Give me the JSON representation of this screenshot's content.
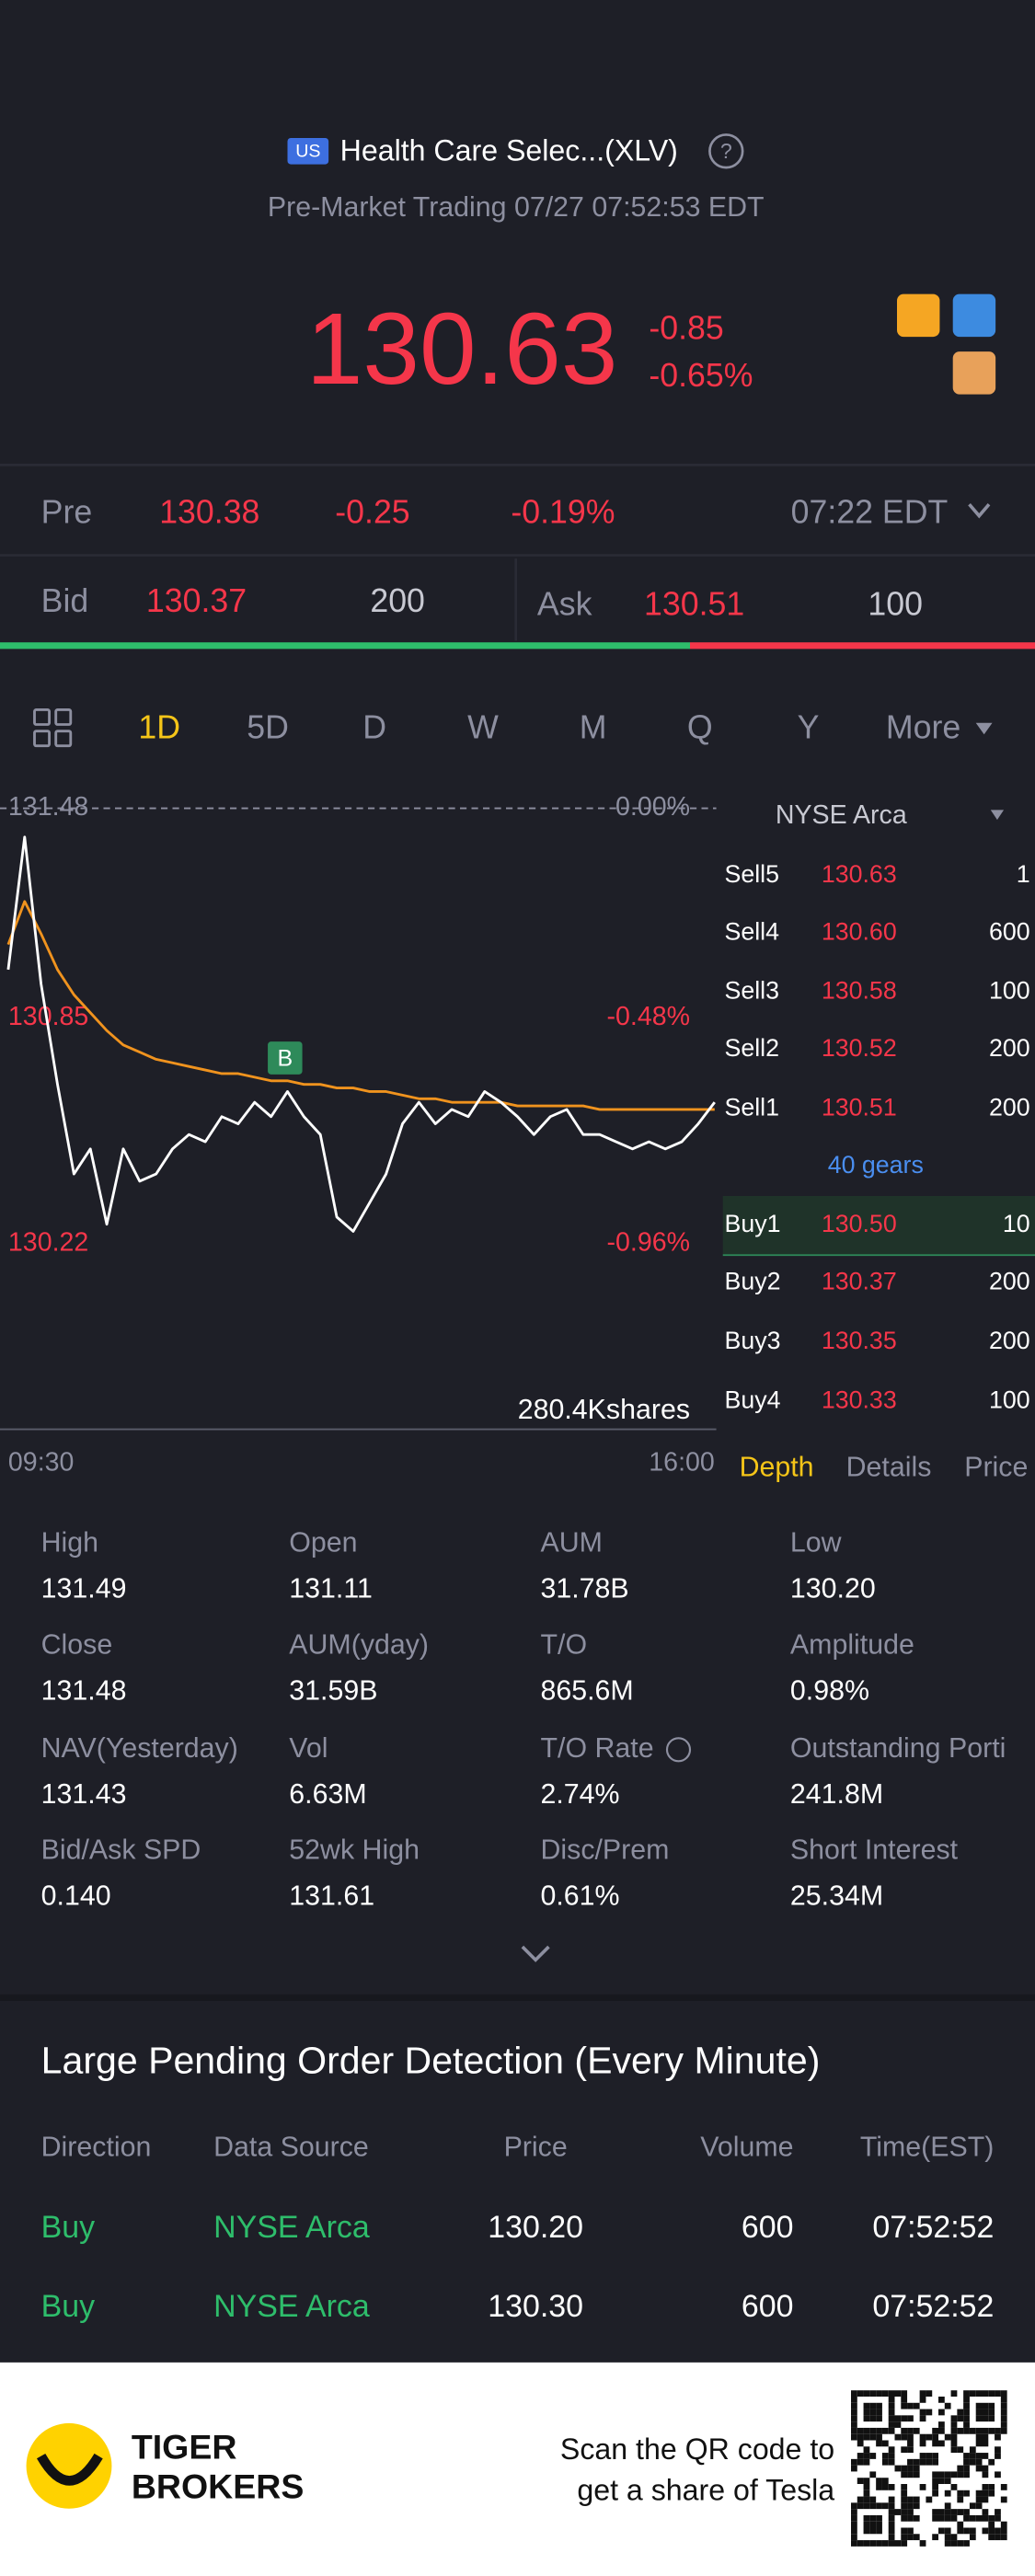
{
  "header": {
    "badge": "US",
    "title": "Health Care Selec...(XLV)",
    "subtitle": "Pre-Market Trading 07/27 07:52:53 EDT",
    "price": "130.63",
    "change": "-0.85",
    "change_pct": "-0.65%"
  },
  "pre": {
    "label": "Pre",
    "price": "130.38",
    "change": "-0.25",
    "change_pct": "-0.19%",
    "time": "07:22 EDT"
  },
  "quote": {
    "bid_label": "Bid",
    "bid": "130.37",
    "bid_size": "200",
    "ask_label": "Ask",
    "ask": "130.51",
    "ask_size": "100"
  },
  "periods": [
    "1D",
    "5D",
    "D",
    "W",
    "M",
    "Q",
    "Y",
    "More"
  ],
  "chart_data": {
    "type": "line",
    "ylim": [
      130.22,
      131.48
    ],
    "yticks": [
      131.48,
      130.85,
      130.22
    ],
    "pct_labels": [
      "0.00%",
      "-0.48%",
      "-0.96%"
    ],
    "x_labels": [
      "09:30",
      "16:00"
    ],
    "volume_label": "280.4Kshares",
    "marker": "B",
    "series": [
      {
        "color": "#ffffff",
        "values": [
          131.03,
          131.4,
          130.99,
          130.71,
          130.46,
          130.53,
          130.32,
          130.53,
          130.44,
          130.46,
          130.53,
          130.57,
          130.55,
          130.62,
          130.6,
          130.66,
          130.62,
          130.69,
          130.62,
          130.57,
          130.34,
          130.3,
          130.38,
          130.46,
          130.6,
          130.66,
          130.6,
          130.64,
          130.62,
          130.69,
          130.66,
          130.62,
          130.57,
          130.62,
          130.64,
          130.57,
          130.57,
          130.55,
          130.53,
          130.55,
          130.53,
          130.55,
          130.6,
          130.66
        ]
      },
      {
        "color": "#f0931e",
        "values": [
          131.1,
          131.22,
          131.13,
          131.03,
          130.96,
          130.91,
          130.86,
          130.82,
          130.8,
          130.78,
          130.77,
          130.76,
          130.75,
          130.74,
          130.74,
          130.73,
          130.72,
          130.72,
          130.71,
          130.71,
          130.7,
          130.7,
          130.69,
          130.69,
          130.68,
          130.67,
          130.67,
          130.66,
          130.66,
          130.66,
          130.66,
          130.65,
          130.65,
          130.65,
          130.65,
          130.65,
          130.64,
          130.64,
          130.64,
          130.64,
          130.64,
          130.64,
          130.64,
          130.64
        ]
      }
    ]
  },
  "order_book": {
    "exchange": "NYSE Arca",
    "asks": [
      [
        "Sell5",
        "130.63",
        "1"
      ],
      [
        "Sell4",
        "130.60",
        "600"
      ],
      [
        "Sell3",
        "130.58",
        "100"
      ],
      [
        "Sell2",
        "130.52",
        "200"
      ],
      [
        "Sell1",
        "130.51",
        "200"
      ]
    ],
    "gears": "40 gears",
    "bids": [
      [
        "Buy1",
        "130.50",
        "10"
      ],
      [
        "Buy2",
        "130.37",
        "200"
      ],
      [
        "Buy3",
        "130.35",
        "200"
      ],
      [
        "Buy4",
        "130.33",
        "100"
      ]
    ],
    "tabs": [
      "Depth",
      "Details",
      "Price"
    ]
  },
  "stats": [
    [
      [
        "High",
        "131.49"
      ],
      [
        "Open",
        "131.11"
      ],
      [
        "AUM",
        "31.78B"
      ],
      [
        "Low",
        "130.20"
      ]
    ],
    [
      [
        "Close",
        "131.48"
      ],
      [
        "AUM(yday)",
        "31.59B"
      ],
      [
        "T/O",
        "865.6M"
      ],
      [
        "Amplitude",
        "0.98%"
      ]
    ],
    [
      [
        "NAV(Yesterday)",
        "131.43"
      ],
      [
        "Vol",
        "6.63M"
      ],
      [
        "T/O Rate",
        "2.74%"
      ],
      [
        "Outstanding Porti",
        "241.8M"
      ]
    ],
    [
      [
        "Bid/Ask SPD",
        "0.140"
      ],
      [
        "52wk High",
        "131.61"
      ],
      [
        "Disc/Prem",
        "0.61%"
      ],
      [
        "Short Interest",
        "25.34M"
      ]
    ]
  ],
  "orders": {
    "title": "Large Pending Order Detection (Every Minute)",
    "headers": [
      "Direction",
      "Data Source",
      "Price",
      "Volume",
      "Time(EST)"
    ],
    "rows": [
      [
        "Buy",
        "NYSE Arca",
        "130.20",
        "600",
        "07:52:52"
      ],
      [
        "Buy",
        "NYSE Arca",
        "130.30",
        "600",
        "07:52:52"
      ]
    ]
  },
  "footer": {
    "brand": [
      "TIGER",
      "BROKERS"
    ],
    "promo": [
      "Scan the QR code to",
      "get a share of Tesla"
    ]
  }
}
